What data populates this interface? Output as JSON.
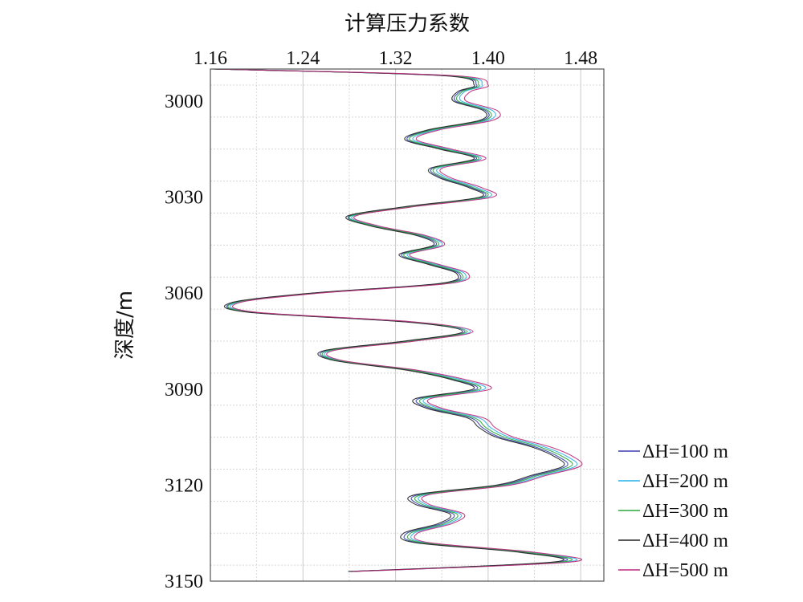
{
  "chart_data": {
    "type": "line",
    "title": "",
    "xlabel": "计算压力系数",
    "ylabel": "深度/m",
    "x_axis_position": "top",
    "y_inverted": true,
    "xlim": [
      1.16,
      1.5
    ],
    "ylim": [
      2990,
      3150
    ],
    "x_ticks": [
      "1.16",
      "1.24",
      "1.32",
      "1.40",
      "1.48"
    ],
    "y_ticks": [
      "3000",
      "3030",
      "3060",
      "3090",
      "3120",
      "3150"
    ],
    "grid": true,
    "legend_position": "bottom-right (outside plot)",
    "depths": [
      2990,
      2992,
      2995,
      2997,
      3000,
      3003,
      3006,
      3009,
      3012,
      3015,
      3018,
      3021,
      3024,
      3027,
      3030,
      3033,
      3036,
      3039,
      3042,
      3045,
      3048,
      3051,
      3054,
      3057,
      3060,
      3063,
      3066,
      3069,
      3072,
      3075,
      3078,
      3081,
      3084,
      3087,
      3090,
      3093,
      3096,
      3099,
      3102,
      3105,
      3108,
      3111,
      3114,
      3117,
      3120,
      3123,
      3126,
      3129,
      3132,
      3135,
      3138,
      3141,
      3144,
      3147
    ],
    "series": [
      {
        "name": "ΔH=100 m",
        "color": "#3a3fb0",
        "values": [
          1.162,
          1.36,
          1.39,
          1.376,
          1.372,
          1.398,
          1.395,
          1.35,
          1.33,
          1.36,
          1.39,
          1.352,
          1.36,
          1.385,
          1.395,
          1.33,
          1.28,
          1.3,
          1.34,
          1.355,
          1.325,
          1.35,
          1.375,
          1.36,
          1.25,
          1.18,
          1.195,
          1.33,
          1.38,
          1.33,
          1.26,
          1.268,
          1.33,
          1.37,
          1.39,
          1.34,
          1.35,
          1.385,
          1.395,
          1.41,
          1.44,
          1.46,
          1.468,
          1.44,
          1.41,
          1.34,
          1.34,
          1.37,
          1.36,
          1.33,
          1.34,
          1.43,
          1.46,
          1.28
        ]
      },
      {
        "name": "ΔH=200 m",
        "color": "#29b3e6",
        "values": [
          1.162,
          1.365,
          1.395,
          1.38,
          1.377,
          1.404,
          1.4,
          1.355,
          1.335,
          1.365,
          1.394,
          1.357,
          1.365,
          1.39,
          1.4,
          1.334,
          1.283,
          1.303,
          1.344,
          1.36,
          1.33,
          1.355,
          1.38,
          1.364,
          1.253,
          1.183,
          1.198,
          1.334,
          1.385,
          1.335,
          1.264,
          1.271,
          1.335,
          1.376,
          1.397,
          1.346,
          1.357,
          1.392,
          1.402,
          1.418,
          1.448,
          1.468,
          1.476,
          1.447,
          1.416,
          1.346,
          1.346,
          1.376,
          1.366,
          1.336,
          1.346,
          1.437,
          1.468,
          1.282
        ]
      },
      {
        "name": "ΔH=300 m",
        "color": "#2aa83a",
        "values": [
          1.162,
          1.362,
          1.392,
          1.378,
          1.374,
          1.4,
          1.397,
          1.352,
          1.332,
          1.362,
          1.392,
          1.354,
          1.362,
          1.387,
          1.397,
          1.332,
          1.281,
          1.301,
          1.342,
          1.357,
          1.327,
          1.352,
          1.377,
          1.362,
          1.251,
          1.181,
          1.196,
          1.332,
          1.382,
          1.332,
          1.262,
          1.269,
          1.332,
          1.372,
          1.393,
          1.343,
          1.353,
          1.388,
          1.398,
          1.414,
          1.444,
          1.464,
          1.472,
          1.443,
          1.413,
          1.343,
          1.343,
          1.373,
          1.363,
          1.333,
          1.343,
          1.433,
          1.464,
          1.281
        ]
      },
      {
        "name": "ΔH=400 m",
        "color": "#222222",
        "values": [
          1.162,
          1.358,
          1.388,
          1.374,
          1.37,
          1.396,
          1.393,
          1.348,
          1.328,
          1.358,
          1.388,
          1.35,
          1.358,
          1.383,
          1.393,
          1.328,
          1.278,
          1.298,
          1.338,
          1.353,
          1.323,
          1.348,
          1.373,
          1.358,
          1.248,
          1.178,
          1.193,
          1.328,
          1.378,
          1.328,
          1.258,
          1.266,
          1.328,
          1.368,
          1.387,
          1.337,
          1.347,
          1.382,
          1.392,
          1.407,
          1.437,
          1.457,
          1.465,
          1.437,
          1.407,
          1.337,
          1.337,
          1.367,
          1.357,
          1.327,
          1.337,
          1.427,
          1.457,
          1.279
        ]
      },
      {
        "name": "ΔH=500 m",
        "color": "#c0287d",
        "values": [
          1.162,
          1.368,
          1.4,
          1.385,
          1.381,
          1.408,
          1.404,
          1.358,
          1.338,
          1.368,
          1.398,
          1.36,
          1.368,
          1.394,
          1.404,
          1.336,
          1.285,
          1.305,
          1.346,
          1.362,
          1.332,
          1.357,
          1.383,
          1.366,
          1.255,
          1.185,
          1.2,
          1.336,
          1.387,
          1.337,
          1.266,
          1.273,
          1.337,
          1.38,
          1.402,
          1.35,
          1.36,
          1.396,
          1.406,
          1.422,
          1.453,
          1.473,
          1.48,
          1.45,
          1.419,
          1.349,
          1.349,
          1.379,
          1.369,
          1.339,
          1.349,
          1.44,
          1.472,
          1.283
        ]
      }
    ]
  }
}
